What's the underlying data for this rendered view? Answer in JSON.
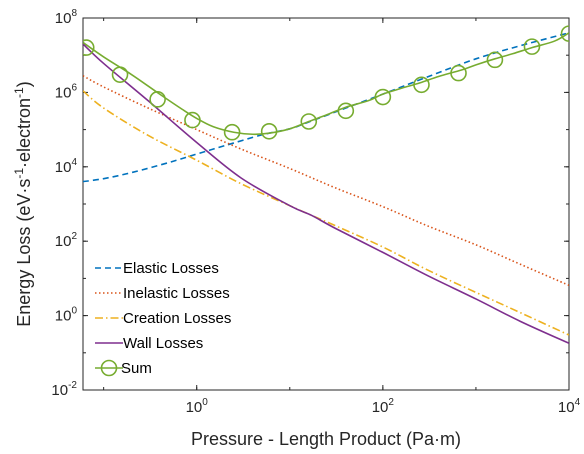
{
  "chart_data": {
    "type": "line",
    "xlabel": "Pressure - Length Product (Pa·m)",
    "ylabel_parts": [
      "Energy Loss (eV·s",
      "-1",
      "·electron",
      "-1",
      ")"
    ],
    "xscale": "log",
    "yscale": "log",
    "xlim": [
      0.06,
      10000
    ],
    "ylim": [
      0.01,
      100000000
    ],
    "x_ticks": [
      {
        "base": "10",
        "exp": "0",
        "value": 1
      },
      {
        "base": "10",
        "exp": "2",
        "value": 100
      },
      {
        "base": "10",
        "exp": "4",
        "value": 10000
      }
    ],
    "y_ticks": [
      {
        "base": "10",
        "exp": "-2",
        "value": 0.01
      },
      {
        "base": "10",
        "exp": "0",
        "value": 1
      },
      {
        "base": "10",
        "exp": "2",
        "value": 100
      },
      {
        "base": "10",
        "exp": "4",
        "value": 10000
      },
      {
        "base": "10",
        "exp": "6",
        "value": 1000000
      },
      {
        "base": "10",
        "exp": "8",
        "value": 100000000
      }
    ],
    "legend_position": "bottom-left",
    "series": [
      {
        "name": "Elastic Losses",
        "color": "#0072BD",
        "style": "dashed",
        "x": [
          0.06,
          0.1,
          0.2,
          0.5,
          1,
          2,
          5,
          10,
          16,
          40,
          100,
          300,
          1000,
          3000,
          10000
        ],
        "y": [
          4000,
          4800,
          7000,
          13000,
          22000,
          37000,
          72000,
          105000,
          160000,
          380000,
          900000,
          2600000,
          8000000,
          18000000,
          40000000
        ]
      },
      {
        "name": "Inelastic Losses",
        "color": "#D95319",
        "style": "dotted",
        "x": [
          0.06,
          0.1,
          0.3,
          1,
          3,
          10,
          30,
          100,
          300,
          1000,
          3000,
          10000
        ],
        "y": [
          2800000,
          1400000,
          380000,
          100000,
          30000,
          9000,
          2800,
          850,
          260,
          80,
          24,
          6.5
        ]
      },
      {
        "name": "Creation Losses",
        "color": "#EDB120",
        "style": "dashdot",
        "x": [
          0.06,
          0.1,
          0.3,
          1,
          3,
          10,
          17,
          30,
          100,
          300,
          1000,
          3000,
          10000
        ],
        "y": [
          1100000,
          380000,
          70000,
          15000,
          3500,
          900,
          500,
          270,
          70,
          17,
          4.2,
          1.2,
          0.3
        ]
      },
      {
        "name": "Wall Losses",
        "color": "#7E2F8E",
        "style": "solid",
        "x": [
          0.06,
          0.1,
          0.3,
          1,
          3,
          10,
          17,
          30,
          100,
          300,
          1000,
          3000,
          10000
        ],
        "y": [
          20000000,
          6000000,
          600000,
          45000,
          5000,
          900,
          500,
          230,
          50,
          12,
          2.8,
          0.7,
          0.18
        ]
      },
      {
        "name": "Sum",
        "color": "#77AC30",
        "style": "solid-circle",
        "x": [
          0.06,
          0.1,
          0.2,
          0.4,
          0.7,
          1,
          1.5,
          2.5,
          4,
          6,
          10,
          16,
          25,
          40,
          70,
          100,
          160,
          250,
          400,
          700,
          1000,
          1600,
          2500,
          4000,
          7000,
          10000
        ],
        "y": [
          22000000,
          9000000,
          3000000,
          900000,
          350000,
          200000,
          120000,
          85000,
          75000,
          80000,
          105000,
          165000,
          250000,
          400000,
          600000,
          900000,
          1300000,
          1800000,
          2700000,
          4000000,
          5500000,
          8000000,
          11000000,
          16000000,
          24000000,
          40000000
        ],
        "markers_x": [
          0.065,
          0.15,
          0.38,
          0.9,
          2.4,
          6,
          16,
          40,
          100,
          260,
          650,
          1600,
          4000,
          10000
        ],
        "markers_y": [
          16000000,
          3000000,
          650000,
          180000,
          85000,
          90000,
          165000,
          320000,
          750000,
          1600000,
          3300000,
          7500000,
          17000000,
          38000000
        ]
      }
    ]
  }
}
